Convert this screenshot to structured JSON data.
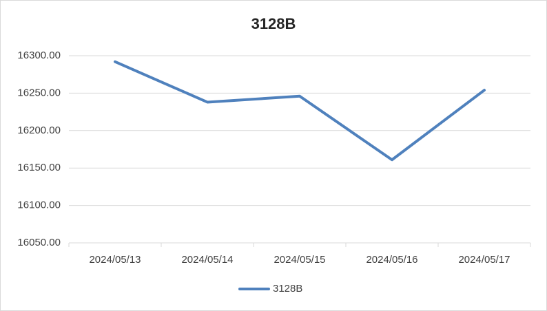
{
  "chart_data": {
    "type": "line",
    "title": "3128B",
    "categories": [
      "2024/05/13",
      "2024/05/14",
      "2024/05/15",
      "2024/05/16",
      "2024/05/17"
    ],
    "series": [
      {
        "name": "3128B",
        "color": "#4f81bd",
        "values": [
          16292,
          16238,
          16246,
          16161,
          16254
        ]
      }
    ],
    "ylim": [
      16050,
      16300
    ],
    "yticks": [
      {
        "value": 16050,
        "label": "16050.00"
      },
      {
        "value": 16100,
        "label": "16100.00"
      },
      {
        "value": 16150,
        "label": "16150.00"
      },
      {
        "value": 16200,
        "label": "16200.00"
      },
      {
        "value": 16250,
        "label": "16250.00"
      },
      {
        "value": 16300,
        "label": "16300.00"
      }
    ],
    "grid": true,
    "legend": "bottom"
  }
}
